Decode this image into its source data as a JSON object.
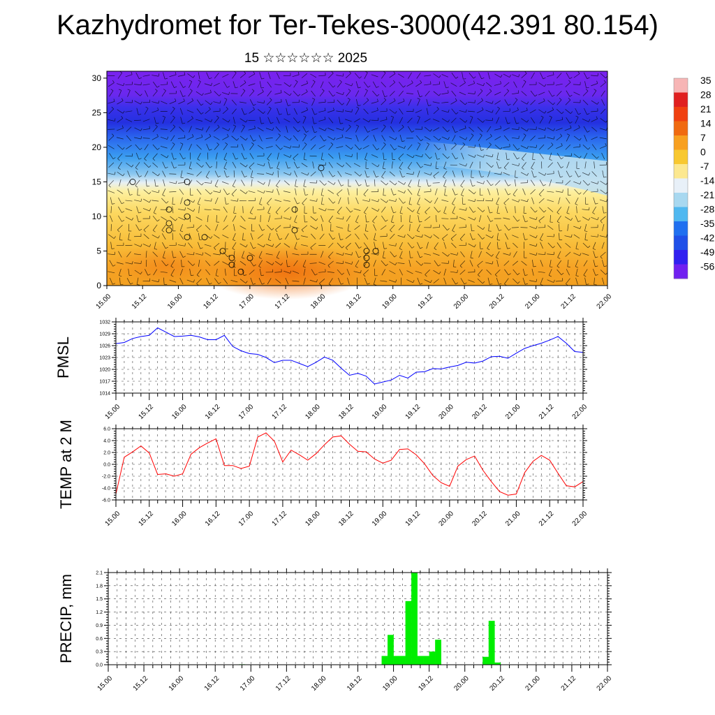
{
  "title": "Kazhydromet for Ter-Tekes-3000(42.391 80.154)",
  "subtitle": "15 ☆☆☆☆☆☆ 2025",
  "chart_data": [
    {
      "type": "heatmap",
      "name": "temperature-wind-section",
      "x_tick_labels": [
        "15.00",
        "15.12",
        "16.00",
        "16.12",
        "17.00",
        "17.12",
        "18.00",
        "18.12",
        "19.00",
        "19.12",
        "20.00",
        "20.12",
        "21.00",
        "21.12",
        "22.00"
      ],
      "y_ticks": [
        0,
        5,
        10,
        15,
        20,
        25,
        30
      ],
      "ylim": [
        0,
        31
      ],
      "colorbar_labels": [
        "35",
        "28",
        "21",
        "14",
        "7",
        "0",
        "-7",
        "-14",
        "-21",
        "-28",
        "-35",
        "-42",
        "-49",
        "-56"
      ],
      "colorbar_colors": [
        "#f7b5b5",
        "#e02020",
        "#f04010",
        "#f06a10",
        "#f8a020",
        "#f8c830",
        "#fce890",
        "#e8f0f8",
        "#a8d8f0",
        "#50b8f0",
        "#2070f0",
        "#2050e8",
        "#3020f0",
        "#7020f0"
      ]
    },
    {
      "type": "line",
      "ylabel": "PMSL",
      "x_tick_labels": [
        "15.00",
        "15.12",
        "16.00",
        "16.12",
        "17.00",
        "17.12",
        "18.00",
        "18.12",
        "19.00",
        "19.12",
        "20.00",
        "20.12",
        "21.00",
        "21.12",
        "22.00"
      ],
      "y_ticks": [
        "1014",
        "1017",
        "1020",
        "1023",
        "1026",
        "1029",
        "1032"
      ],
      "ylim": [
        1014,
        1032
      ],
      "color": "#0000ff",
      "values": [
        1026.5,
        1026.8,
        1027.8,
        1028.3,
        1028.6,
        1030.5,
        1029.4,
        1028.3,
        1028.4,
        1028.6,
        1028.2,
        1027.5,
        1027.5,
        1028.6,
        1025.8,
        1024.7,
        1024.0,
        1023.8,
        1023.0,
        1021.7,
        1022.3,
        1022.3,
        1021.5,
        1020.7,
        1021.8,
        1023.1,
        1022.3,
        1020.3,
        1018.5,
        1019.0,
        1018.3,
        1016.3,
        1016.8,
        1017.3,
        1018.5,
        1017.8,
        1019.3,
        1019.4,
        1020.2,
        1020.1,
        1020.6,
        1021.0,
        1021.8,
        1021.6,
        1022.1,
        1023.2,
        1023.3,
        1022.8,
        1024.1,
        1025.3,
        1026.0,
        1026.6,
        1027.4,
        1028.3,
        1026.6,
        1024.5,
        1024.3
      ]
    },
    {
      "type": "line",
      "ylabel": "TEMP at 2 M",
      "x_tick_labels": [
        "15.00",
        "15.12",
        "16.00",
        "16.12",
        "17.00",
        "17.12",
        "18.00",
        "18.12",
        "19.00",
        "19.12",
        "20.00",
        "20.12",
        "21.00",
        "21.12",
        "22.00"
      ],
      "y_ticks": [
        "-6.0",
        "-4.0",
        "-2.0",
        "0.0",
        "2.0",
        "4.0",
        "6.0"
      ],
      "ylim": [
        -6,
        6
      ],
      "color": "#ff0000",
      "values": [
        -5.0,
        1.2,
        2.1,
        3.1,
        1.9,
        -1.7,
        -1.6,
        -2.0,
        -1.6,
        1.7,
        2.8,
        3.6,
        4.3,
        -0.2,
        -0.2,
        -0.7,
        -0.3,
        4.6,
        5.3,
        3.9,
        0.4,
        2.4,
        1.6,
        0.7,
        1.8,
        3.3,
        4.6,
        4.8,
        3.4,
        2.2,
        2.1,
        0.9,
        0.2,
        0.7,
        2.5,
        2.6,
        1.6,
        0.1,
        -1.9,
        -3.1,
        -3.7,
        -0.3,
        0.8,
        1.4,
        -1.0,
        -2.9,
        -4.6,
        -5.2,
        -5.0,
        -1.4,
        0.5,
        1.5,
        0.7,
        -1.5,
        -3.6,
        -3.8,
        -2.9
      ]
    },
    {
      "type": "bar",
      "ylabel": "PRECIP, mm",
      "x_tick_labels": [
        "15.00",
        "15.12",
        "16.00",
        "16.12",
        "17.00",
        "17.12",
        "18.00",
        "18.12",
        "19.00",
        "19.12",
        "20.00",
        "20.12",
        "21.00",
        "21.12",
        "22.00"
      ],
      "y_ticks": [
        "0.0",
        "0.3",
        "0.6",
        "0.9",
        "1.2",
        "1.5",
        "1.8",
        "2.1"
      ],
      "ylim": [
        0,
        2.1
      ],
      "color": "#00ee00",
      "values": [
        0,
        0,
        0,
        0,
        0,
        0,
        0,
        0,
        0,
        0,
        0,
        0,
        0,
        0,
        0,
        0,
        0,
        0,
        0,
        0,
        0,
        0,
        0.01,
        0,
        0,
        0,
        0,
        0,
        0,
        0,
        0,
        0,
        0,
        0,
        0,
        0,
        0,
        0,
        0,
        0,
        0,
        0,
        0,
        0,
        0,
        0,
        0.2,
        0.68,
        0.2,
        0.2,
        1.45,
        2.1,
        0.2,
        0.2,
        0.3,
        0.57,
        0,
        0,
        0,
        0,
        0,
        0,
        0,
        0.18,
        1.0,
        0.05,
        0,
        0,
        0,
        0,
        0,
        0,
        0,
        0,
        0,
        0,
        0,
        0,
        0,
        0,
        0,
        0,
        0,
        0
      ]
    }
  ]
}
